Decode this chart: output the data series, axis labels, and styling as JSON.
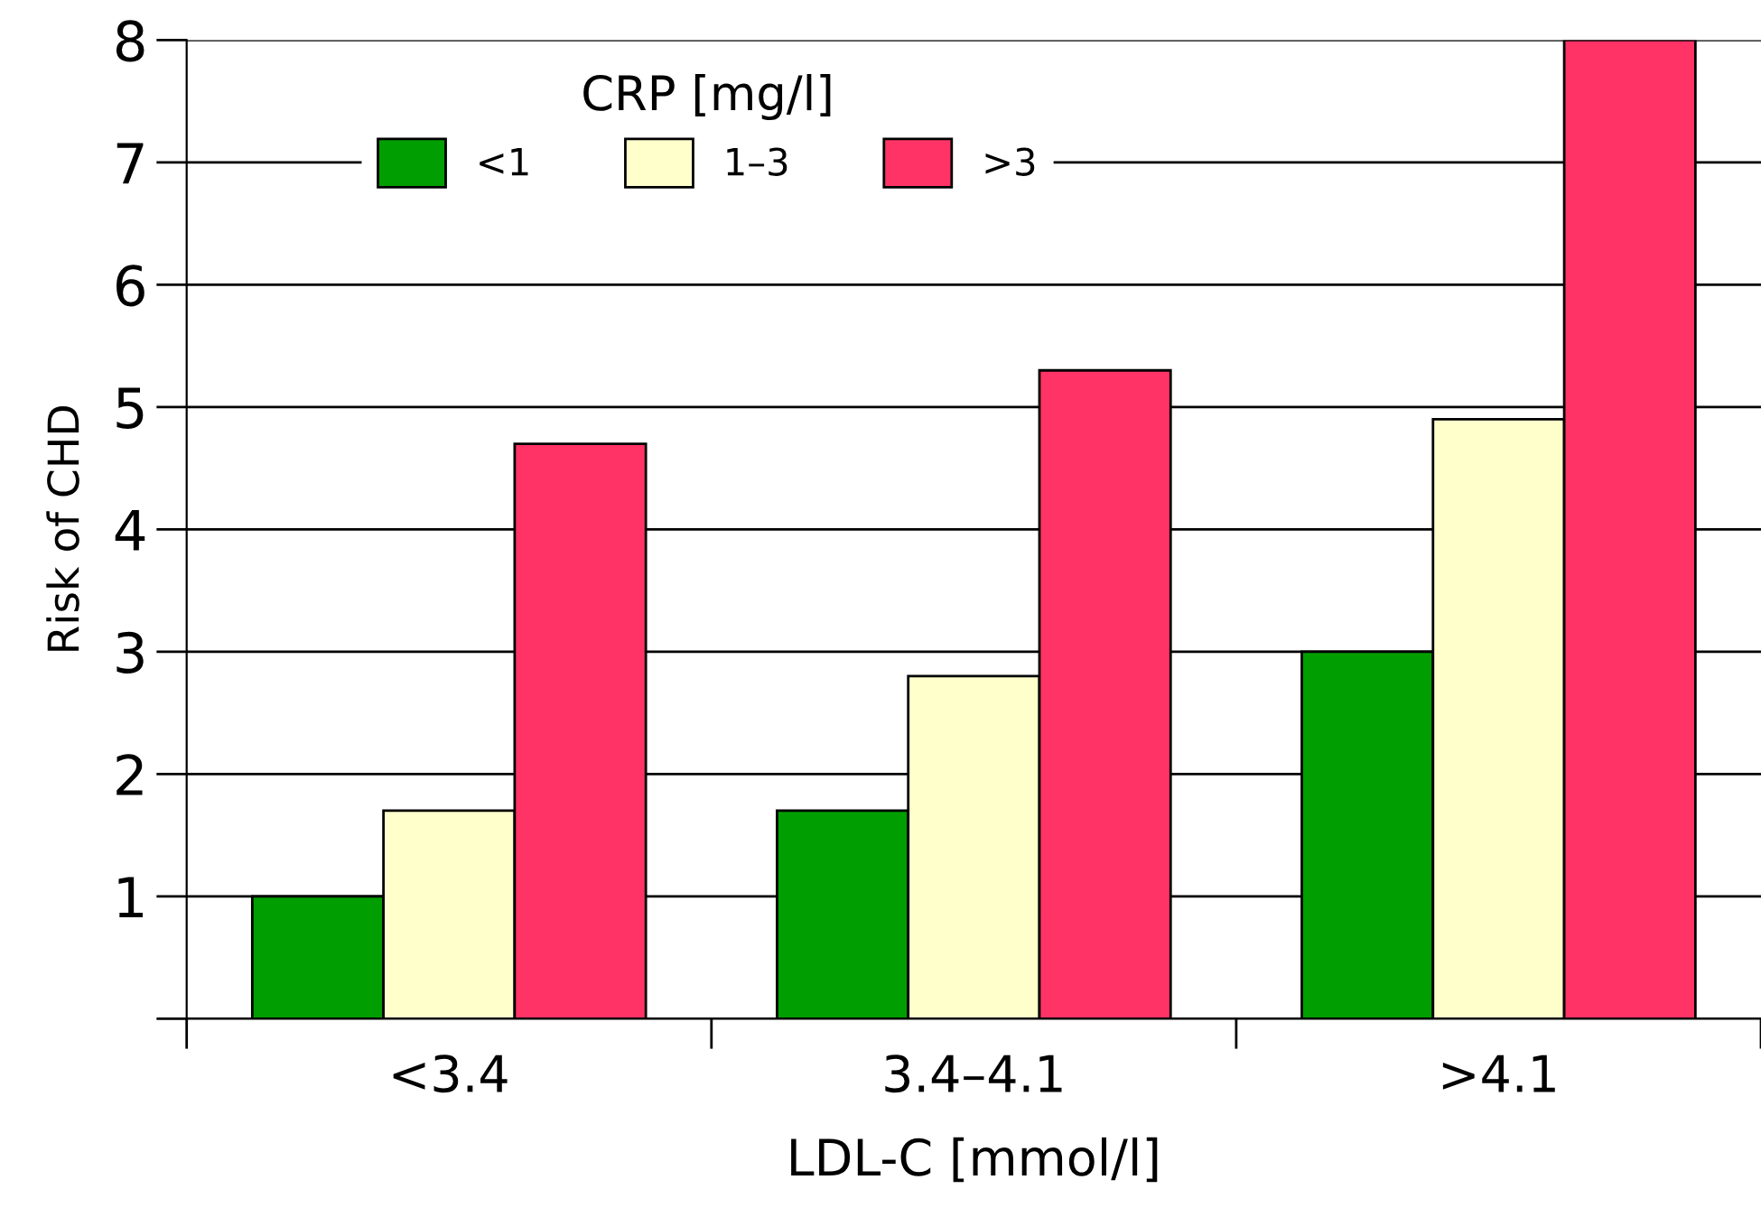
{
  "chart_data": {
    "type": "bar",
    "xlabel": "LDL-C [mmol/l]",
    "ylabel": "Risk of CHD",
    "legend_title": "CRP [mg/l]",
    "categories": [
      "<3.4",
      "3.4–4.1",
      ">4.1"
    ],
    "series": [
      {
        "name": "<1",
        "color": "#009e00",
        "values": [
          1,
          1.7,
          3
        ]
      },
      {
        "name": "1–3",
        "color": "#ffffcc",
        "values": [
          1.7,
          2.8,
          4.9
        ]
      },
      {
        "name": ">3",
        "color": "#ff3366",
        "values": [
          4.7,
          5.3,
          8
        ]
      }
    ],
    "ylim": [
      0,
      8
    ],
    "yticks": [
      {
        "value": 0,
        "label": null
      },
      1,
      2,
      3,
      4,
      5,
      6,
      7,
      8
    ],
    "grid": "y",
    "legend": "top left"
  }
}
